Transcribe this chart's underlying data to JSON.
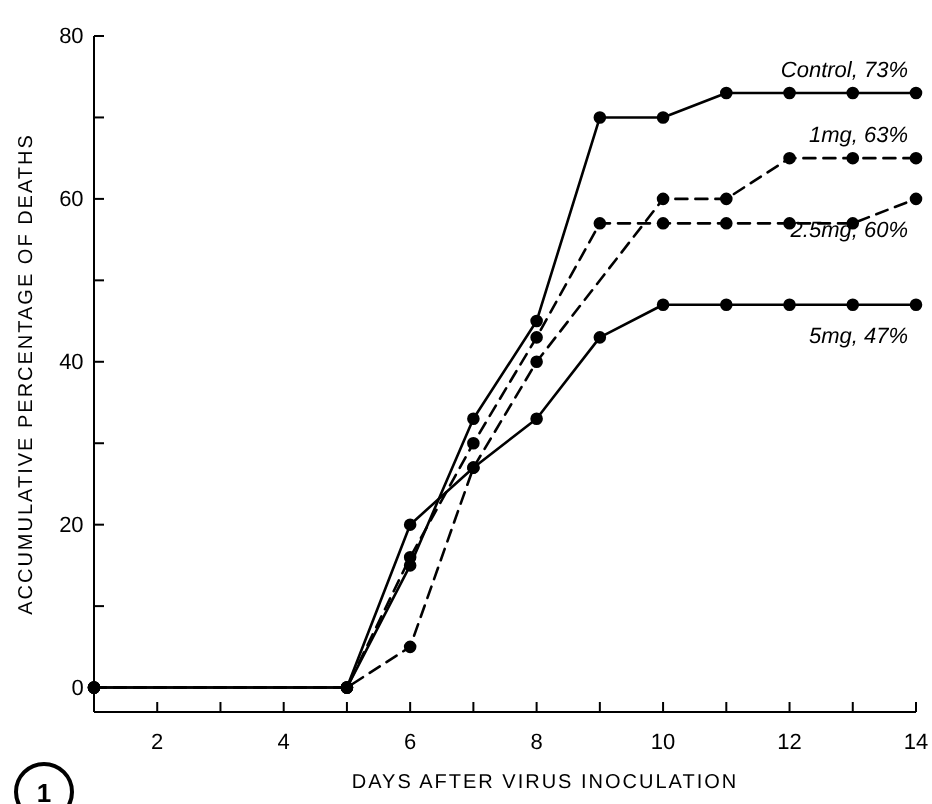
{
  "chart_data": {
    "type": "line",
    "xlabel": "DAYS AFTER VIRUS INOCULATION",
    "ylabel": "ACCUMULATIVE PERCENTAGE OF DEATHS",
    "x": [
      1,
      5,
      6,
      7,
      8,
      9,
      10,
      11,
      12,
      13,
      14
    ],
    "xlim": [
      1,
      14
    ],
    "xticks": [
      {
        "value": 2,
        "label": "2"
      },
      {
        "value": 3,
        "label": null
      },
      {
        "value": 4,
        "label": "4"
      },
      {
        "value": 5,
        "label": null
      },
      {
        "value": 6,
        "label": "6"
      },
      {
        "value": 7,
        "label": null
      },
      {
        "value": 8,
        "label": "8"
      },
      {
        "value": 9,
        "label": null
      },
      {
        "value": 10,
        "label": "10"
      },
      {
        "value": 11,
        "label": null
      },
      {
        "value": 12,
        "label": "12"
      },
      {
        "value": 13,
        "label": null
      },
      {
        "value": 14,
        "label": "14"
      }
    ],
    "ylim": [
      -3,
      80
    ],
    "yticks": [
      0,
      {
        "value": 10,
        "label": null
      },
      20,
      {
        "value": 30,
        "label": null
      },
      40,
      {
        "value": 50,
        "label": null
      },
      60,
      {
        "value": 70,
        "label": null
      },
      80
    ],
    "grid": false,
    "marker": "circle",
    "series": [
      {
        "name": "Control, 73%",
        "color": "#000000",
        "line_style": "solid",
        "values": [
          0,
          0,
          15,
          33,
          45,
          70,
          70,
          73,
          73,
          73,
          73
        ]
      },
      {
        "name": "1mg, 63%",
        "color": "#000000",
        "line_style": "dashed",
        "values": [
          0,
          0,
          5,
          27,
          40,
          null,
          60,
          60,
          65,
          65,
          65
        ]
      },
      {
        "name": "2.5mg, 60%",
        "color": "#000000",
        "line_style": "dashed",
        "values": [
          0,
          0,
          16,
          30,
          43,
          57,
          57,
          57,
          57,
          57,
          60
        ]
      },
      {
        "name": "5mg, 47%",
        "color": "#000000",
        "line_style": "solid",
        "values": [
          0,
          0,
          20,
          27,
          33,
          43,
          47,
          47,
          47,
          47,
          47
        ]
      }
    ],
    "annotations": [
      "1"
    ]
  }
}
